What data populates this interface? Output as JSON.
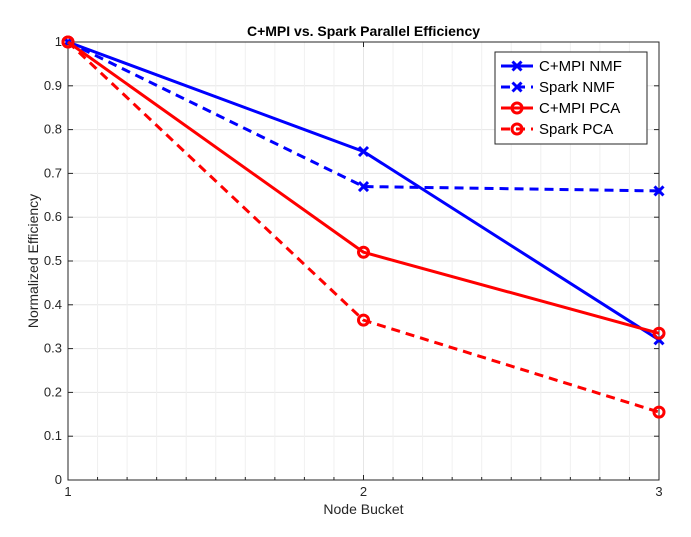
{
  "chart_data": {
    "type": "line",
    "title": "C+MPI vs. Spark Parallel Efficiency",
    "xlabel": "Node Bucket",
    "ylabel": "Normalized Efficiency",
    "x": [
      1,
      2,
      3
    ],
    "xlim": [
      1,
      3
    ],
    "ylim": [
      0,
      1
    ],
    "xticks": [
      "1",
      "2",
      "3"
    ],
    "yticks": [
      "0",
      "0.1",
      "0.2",
      "0.3",
      "0.4",
      "0.5",
      "0.6",
      "0.7",
      "0.8",
      "0.9",
      "1"
    ],
    "grid": true,
    "legend_position": "top-right",
    "series": [
      {
        "name": "C+MPI NMF",
        "values": [
          1.0,
          0.75,
          0.32
        ],
        "color": "#0000ff",
        "line_style": "solid",
        "marker": "x"
      },
      {
        "name": "Spark NMF",
        "values": [
          1.0,
          0.67,
          0.66
        ],
        "color": "#0000ff",
        "line_style": "dashed",
        "marker": "x"
      },
      {
        "name": "C+MPI PCA",
        "values": [
          1.0,
          0.52,
          0.335
        ],
        "color": "#ff0000",
        "line_style": "solid",
        "marker": "o"
      },
      {
        "name": "Spark PCA",
        "values": [
          1.0,
          0.365,
          0.155
        ],
        "color": "#ff0000",
        "line_style": "dashed",
        "marker": "o"
      }
    ]
  }
}
